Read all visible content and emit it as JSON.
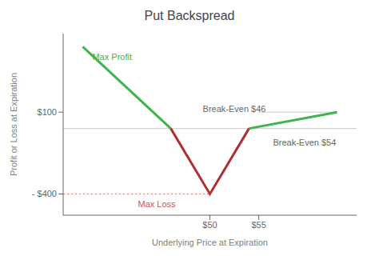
{
  "chart_data": {
    "type": "line",
    "title": "Put Backspread",
    "xlabel": "Underlying Price at Expiration",
    "ylabel": "Profit or Loss at Expiration",
    "x": [
      37,
      46,
      50,
      54,
      63
    ],
    "series": [
      {
        "color": "#3cb54a",
        "values": [
          500,
          0,
          null,
          0,
          100
        ]
      },
      {
        "color": "#b03030",
        "values": [
          null,
          0,
          -400,
          0,
          null
        ]
      }
    ],
    "xlim": [
      35,
      65
    ],
    "ylim": [
      -530,
      580
    ],
    "xticks": [
      {
        "value": 50,
        "label": "$50"
      },
      {
        "value": 55,
        "label": "$55"
      }
    ],
    "yticks": [
      {
        "value": 100,
        "label": "$100"
      },
      {
        "value": -400,
        "label": "- $400"
      }
    ],
    "grid": false,
    "annotations": [
      {
        "text": "Max Profit",
        "color": "#3cb54a"
      },
      {
        "text": "Break-Even $46",
        "color": "#666666"
      },
      {
        "text": "Break-Even $54",
        "color": "#666666"
      },
      {
        "text": "Max Loss",
        "color": "#d05050"
      }
    ]
  }
}
